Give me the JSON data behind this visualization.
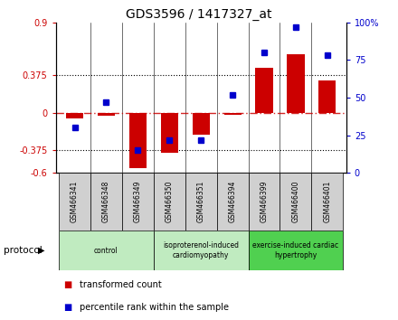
{
  "title": "GDS3596 / 1417327_at",
  "samples": [
    "GSM466341",
    "GSM466348",
    "GSM466349",
    "GSM466350",
    "GSM466351",
    "GSM466394",
    "GSM466399",
    "GSM466400",
    "GSM466401"
  ],
  "bar_values": [
    -0.06,
    -0.03,
    -0.55,
    -0.4,
    -0.22,
    -0.02,
    0.45,
    0.58,
    0.32
  ],
  "dot_values": [
    30,
    47,
    15,
    22,
    22,
    52,
    80,
    97,
    78
  ],
  "bar_color": "#cc0000",
  "dot_color": "#0000cc",
  "left_ylim": [
    -0.6,
    0.9
  ],
  "right_ylim": [
    0,
    100
  ],
  "left_yticks": [
    -0.6,
    -0.375,
    0,
    0.375,
    0.9
  ],
  "right_yticks": [
    0,
    25,
    50,
    75,
    100
  ],
  "right_yticklabels": [
    "0",
    "25",
    "50",
    "75",
    "100%"
  ],
  "hline_dotted": [
    -0.375,
    0.375
  ],
  "hline_dash": 0,
  "group_spans": [
    {
      "start": 0,
      "end": 2,
      "label": "control",
      "color": "#c0ebc0"
    },
    {
      "start": 3,
      "end": 5,
      "label": "isoproterenol-induced\ncardiomyopathy",
      "color": "#c0ebc0"
    },
    {
      "start": 6,
      "end": 8,
      "label": "exercise-induced cardiac\nhypertrophy",
      "color": "#50d050"
    }
  ],
  "protocol_label": "protocol",
  "legend_items": [
    {
      "color": "#cc0000",
      "label": "transformed count"
    },
    {
      "color": "#0000cc",
      "label": "percentile rank within the sample"
    }
  ],
  "sample_bg": "#d0d0d0",
  "bg_color": "#ffffff"
}
